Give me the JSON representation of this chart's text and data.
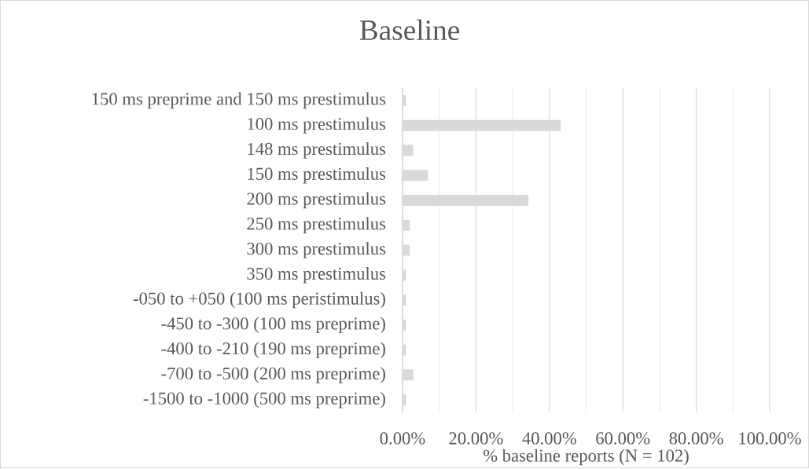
{
  "chart_data": {
    "type": "bar",
    "orientation": "horizontal",
    "title": "Baseline",
    "xlabel": "% baseline reports (N = 102)",
    "categories": [
      "150 ms preprime and 150 ms prestimulus",
      "100 ms prestimulus",
      "148 ms prestimulus",
      "150 ms prestimulus",
      "200 ms prestimulus",
      "250 ms prestimulus",
      "300 ms prestimulus",
      "350 ms prestimulus",
      "-050 to +050 (100 ms peristimulus)",
      "-450 to -300 (100 ms preprime)",
      "-400 to -210 (190 ms preprime)",
      "-700 to -500 (200 ms preprime)",
      "-1500 to -1000 (500 ms preprime)"
    ],
    "values": [
      1,
      43.1,
      2.9,
      6.9,
      34.3,
      2,
      2,
      1,
      1,
      1,
      1,
      2.9,
      1
    ],
    "color": "#d9d9d9",
    "xlim": [
      0,
      100
    ],
    "xticks": [
      {
        "value": 0,
        "label": "0.00%"
      },
      {
        "value": 10,
        "label": null
      },
      {
        "value": 20,
        "label": "20.00%"
      },
      {
        "value": 30,
        "label": null
      },
      {
        "value": 40,
        "label": "40.00%"
      },
      {
        "value": 50,
        "label": null
      },
      {
        "value": 60,
        "label": "60.00%"
      },
      {
        "value": 70,
        "label": null
      },
      {
        "value": 80,
        "label": "80.00%"
      },
      {
        "value": 90,
        "label": null
      },
      {
        "value": 100,
        "label": "100.00%"
      }
    ],
    "grid": "x"
  }
}
